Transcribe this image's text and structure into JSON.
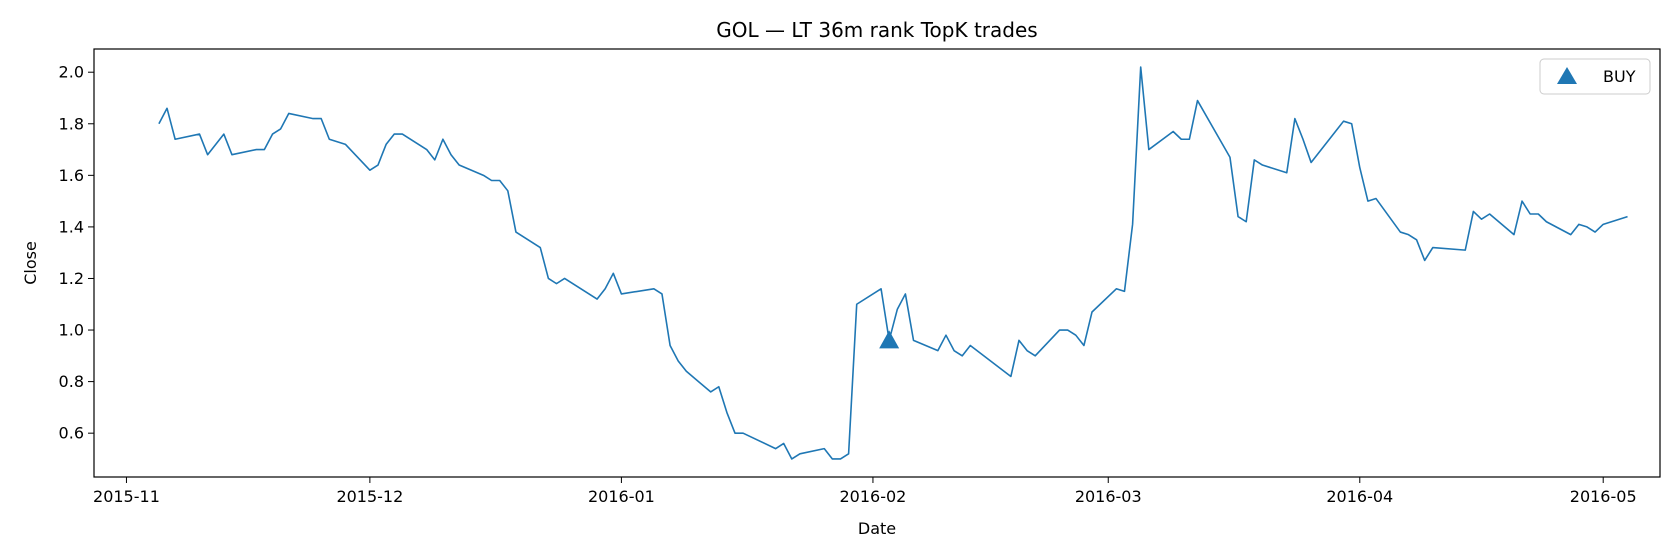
{
  "chart_data": {
    "type": "line",
    "title": "GOL — LT 36m rank TopK trades",
    "xlabel": "Date",
    "ylabel": "Close",
    "xlim": [
      "2015-10-28",
      "2016-05-08"
    ],
    "ylim": [
      0.43,
      2.09
    ],
    "x_ticks": [
      "2015-11-01",
      "2015-12-01",
      "2016-01-01",
      "2016-02-01",
      "2016-03-01",
      "2016-04-01",
      "2016-05-01"
    ],
    "x_tick_labels": [
      "2015-11",
      "2015-12",
      "2016-01",
      "2016-02",
      "2016-03",
      "2016-04",
      "2016-05"
    ],
    "y_ticks": [
      0.6,
      0.8,
      1.0,
      1.2,
      1.4,
      1.6,
      1.8,
      2.0
    ],
    "y_tick_labels": [
      "0.6",
      "0.8",
      "1.0",
      "1.2",
      "1.4",
      "1.6",
      "1.8",
      "2.0"
    ],
    "grid": false,
    "legend_position": "top-right",
    "series": [
      {
        "color": "#1f77b4",
        "points": [
          [
            "2015-11-05",
            1.8
          ],
          [
            "2015-11-06",
            1.86
          ],
          [
            "2015-11-07",
            1.74
          ],
          [
            "2015-11-10",
            1.76
          ],
          [
            "2015-11-11",
            1.68
          ],
          [
            "2015-11-13",
            1.76
          ],
          [
            "2015-11-14",
            1.68
          ],
          [
            "2015-11-17",
            1.7
          ],
          [
            "2015-11-18",
            1.7
          ],
          [
            "2015-11-19",
            1.76
          ],
          [
            "2015-11-20",
            1.78
          ],
          [
            "2015-11-21",
            1.84
          ],
          [
            "2015-11-24",
            1.82
          ],
          [
            "2015-11-25",
            1.82
          ],
          [
            "2015-11-26",
            1.74
          ],
          [
            "2015-11-28",
            1.72
          ],
          [
            "2015-12-01",
            1.62
          ],
          [
            "2015-12-02",
            1.64
          ],
          [
            "2015-12-03",
            1.72
          ],
          [
            "2015-12-04",
            1.76
          ],
          [
            "2015-12-05",
            1.76
          ],
          [
            "2015-12-08",
            1.7
          ],
          [
            "2015-12-09",
            1.66
          ],
          [
            "2015-12-10",
            1.74
          ],
          [
            "2015-12-11",
            1.68
          ],
          [
            "2015-12-12",
            1.64
          ],
          [
            "2015-12-15",
            1.6
          ],
          [
            "2015-12-16",
            1.58
          ],
          [
            "2015-12-17",
            1.58
          ],
          [
            "2015-12-18",
            1.54
          ],
          [
            "2015-12-19",
            1.38
          ],
          [
            "2015-12-22",
            1.32
          ],
          [
            "2015-12-23",
            1.2
          ],
          [
            "2015-12-24",
            1.18
          ],
          [
            "2015-12-25",
            1.2
          ],
          [
            "2015-12-29",
            1.12
          ],
          [
            "2015-12-30",
            1.16
          ],
          [
            "2015-12-31",
            1.22
          ],
          [
            "2016-01-01",
            1.14
          ],
          [
            "2016-01-05",
            1.16
          ],
          [
            "2016-01-06",
            1.14
          ],
          [
            "2016-01-07",
            0.94
          ],
          [
            "2016-01-08",
            0.88
          ],
          [
            "2016-01-09",
            0.84
          ],
          [
            "2016-01-12",
            0.76
          ],
          [
            "2016-01-13",
            0.78
          ],
          [
            "2016-01-14",
            0.68
          ],
          [
            "2016-01-15",
            0.6
          ],
          [
            "2016-01-16",
            0.6
          ],
          [
            "2016-01-20",
            0.54
          ],
          [
            "2016-01-21",
            0.56
          ],
          [
            "2016-01-22",
            0.5
          ],
          [
            "2016-01-23",
            0.52
          ],
          [
            "2016-01-26",
            0.54
          ],
          [
            "2016-01-27",
            0.5
          ],
          [
            "2016-01-28",
            0.5
          ],
          [
            "2016-01-29",
            0.52
          ],
          [
            "2016-01-30",
            1.1
          ],
          [
            "2016-02-02",
            1.16
          ],
          [
            "2016-02-03",
            0.96
          ],
          [
            "2016-02-04",
            1.08
          ],
          [
            "2016-02-05",
            1.14
          ],
          [
            "2016-02-06",
            0.96
          ],
          [
            "2016-02-09",
            0.92
          ],
          [
            "2016-02-10",
            0.98
          ],
          [
            "2016-02-11",
            0.92
          ],
          [
            "2016-02-12",
            0.9
          ],
          [
            "2016-02-13",
            0.94
          ],
          [
            "2016-02-18",
            0.82
          ],
          [
            "2016-02-19",
            0.96
          ],
          [
            "2016-02-20",
            0.92
          ],
          [
            "2016-02-21",
            0.9
          ],
          [
            "2016-02-24",
            1.0
          ],
          [
            "2016-02-25",
            1.0
          ],
          [
            "2016-02-26",
            0.98
          ],
          [
            "2016-02-27",
            0.94
          ],
          [
            "2016-02-28",
            1.07
          ],
          [
            "2016-03-02",
            1.16
          ],
          [
            "2016-03-03",
            1.15
          ],
          [
            "2016-03-04",
            1.41
          ],
          [
            "2016-03-05",
            2.02
          ],
          [
            "2016-03-06",
            1.7
          ],
          [
            "2016-03-09",
            1.77
          ],
          [
            "2016-03-10",
            1.74
          ],
          [
            "2016-03-11",
            1.74
          ],
          [
            "2016-03-12",
            1.89
          ],
          [
            "2016-03-16",
            1.67
          ],
          [
            "2016-03-17",
            1.44
          ],
          [
            "2016-03-18",
            1.42
          ],
          [
            "2016-03-19",
            1.66
          ],
          [
            "2016-03-20",
            1.64
          ],
          [
            "2016-03-23",
            1.61
          ],
          [
            "2016-03-24",
            1.82
          ],
          [
            "2016-03-25",
            1.74
          ],
          [
            "2016-03-26",
            1.65
          ],
          [
            "2016-03-30",
            1.81
          ],
          [
            "2016-03-31",
            1.8
          ],
          [
            "2016-04-01",
            1.63
          ],
          [
            "2016-04-02",
            1.5
          ],
          [
            "2016-04-03",
            1.51
          ],
          [
            "2016-04-06",
            1.38
          ],
          [
            "2016-04-07",
            1.37
          ],
          [
            "2016-04-08",
            1.35
          ],
          [
            "2016-04-09",
            1.27
          ],
          [
            "2016-04-10",
            1.32
          ],
          [
            "2016-04-14",
            1.31
          ],
          [
            "2016-04-15",
            1.46
          ],
          [
            "2016-04-16",
            1.43
          ],
          [
            "2016-04-17",
            1.45
          ],
          [
            "2016-04-20",
            1.37
          ],
          [
            "2016-04-21",
            1.5
          ],
          [
            "2016-04-22",
            1.45
          ],
          [
            "2016-04-23",
            1.45
          ],
          [
            "2016-04-24",
            1.42
          ],
          [
            "2016-04-27",
            1.37
          ],
          [
            "2016-04-28",
            1.41
          ],
          [
            "2016-04-29",
            1.4
          ],
          [
            "2016-04-30",
            1.38
          ],
          [
            "2016-05-01",
            1.41
          ],
          [
            "2016-05-04",
            1.44
          ]
        ]
      }
    ],
    "markers": [
      {
        "label": "BUY",
        "shape": "triangle-up",
        "color": "#1f77b4",
        "points": [
          [
            "2016-02-03",
            0.96
          ]
        ]
      }
    ],
    "legend": [
      {
        "label": "BUY",
        "shape": "triangle-up",
        "color": "#1f77b4"
      }
    ]
  }
}
